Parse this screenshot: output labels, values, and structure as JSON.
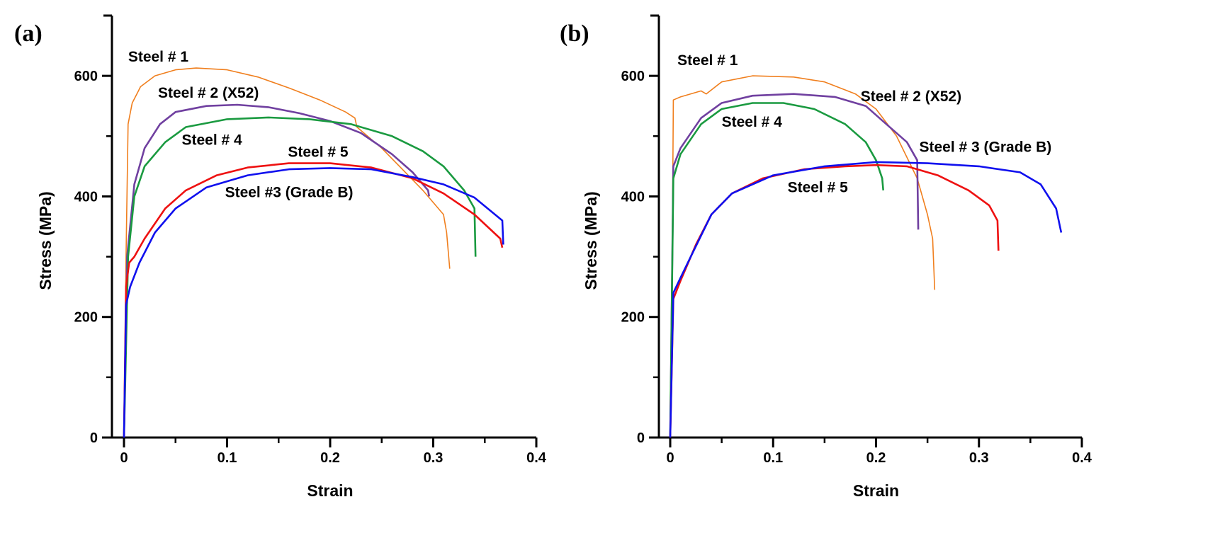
{
  "chart_data": [
    {
      "type": "line",
      "panel_label": "(a)",
      "xlabel": "Strain",
      "ylabel": "Stress (MPa)",
      "xlim": [
        0,
        0.4
      ],
      "ylim": [
        0,
        700
      ],
      "xticks": [
        "0",
        "0.1",
        "0.2",
        "0.3",
        "0.4"
      ],
      "yticks": [
        "0",
        "200",
        "400",
        "600"
      ],
      "grid": false,
      "series": [
        {
          "name": "Steel # 1",
          "color": "#f07f1e",
          "points": [
            [
              0,
              0
            ],
            [
              0.002,
              300
            ],
            [
              0.004,
              520
            ],
            [
              0.008,
              555
            ],
            [
              0.014,
              575
            ],
            [
              0.016,
              582
            ],
            [
              0.03,
              600
            ],
            [
              0.05,
              610
            ],
            [
              0.07,
              613
            ],
            [
              0.1,
              610
            ],
            [
              0.13,
              598
            ],
            [
              0.16,
              580
            ],
            [
              0.19,
              560
            ],
            [
              0.215,
              540
            ],
            [
              0.224,
              530
            ],
            [
              0.226,
              515
            ],
            [
              0.25,
              480
            ],
            [
              0.27,
              445
            ],
            [
              0.29,
              410
            ],
            [
              0.31,
              370
            ],
            [
              0.313,
              340
            ],
            [
              0.316,
              280
            ]
          ]
        },
        {
          "name": "Steel # 2 (X52)",
          "color": "#7040a0",
          "points": [
            [
              0,
              0
            ],
            [
              0.003,
              300
            ],
            [
              0.01,
              420
            ],
            [
              0.02,
              480
            ],
            [
              0.035,
              520
            ],
            [
              0.05,
              540
            ],
            [
              0.08,
              550
            ],
            [
              0.11,
              552
            ],
            [
              0.14,
              548
            ],
            [
              0.17,
              538
            ],
            [
              0.2,
              525
            ],
            [
              0.23,
              505
            ],
            [
              0.26,
              470
            ],
            [
              0.28,
              440
            ],
            [
              0.295,
              410
            ],
            [
              0.296,
              400
            ]
          ]
        },
        {
          "name": "Steel # 4",
          "color": "#1a9a40",
          "points": [
            [
              0,
              0
            ],
            [
              0.004,
              300
            ],
            [
              0.01,
              400
            ],
            [
              0.02,
              450
            ],
            [
              0.04,
              490
            ],
            [
              0.06,
              515
            ],
            [
              0.1,
              528
            ],
            [
              0.14,
              531
            ],
            [
              0.18,
              528
            ],
            [
              0.22,
              520
            ],
            [
              0.26,
              500
            ],
            [
              0.29,
              475
            ],
            [
              0.31,
              450
            ],
            [
              0.33,
              410
            ],
            [
              0.34,
              380
            ],
            [
              0.341,
              300
            ]
          ]
        },
        {
          "name": "Steel # 5",
          "color": "#ee1111",
          "points": [
            [
              0,
              0
            ],
            [
              0.002,
              250
            ],
            [
              0.005,
              290
            ],
            [
              0.01,
              300
            ],
            [
              0.02,
              330
            ],
            [
              0.04,
              380
            ],
            [
              0.06,
              410
            ],
            [
              0.09,
              435
            ],
            [
              0.12,
              448
            ],
            [
              0.16,
              455
            ],
            [
              0.2,
              455
            ],
            [
              0.24,
              448
            ],
            [
              0.28,
              430
            ],
            [
              0.31,
              405
            ],
            [
              0.34,
              370
            ],
            [
              0.365,
              330
            ],
            [
              0.367,
              315
            ]
          ]
        },
        {
          "name": "Steel #3 (Grade B)",
          "color": "#1010ee",
          "points": [
            [
              0,
              0
            ],
            [
              0.002,
              220
            ],
            [
              0.006,
              250
            ],
            [
              0.015,
              290
            ],
            [
              0.03,
              340
            ],
            [
              0.05,
              380
            ],
            [
              0.08,
              415
            ],
            [
              0.12,
              435
            ],
            [
              0.16,
              445
            ],
            [
              0.2,
              447
            ],
            [
              0.24,
              445
            ],
            [
              0.28,
              432
            ],
            [
              0.31,
              420
            ],
            [
              0.34,
              398
            ],
            [
              0.367,
              360
            ],
            [
              0.368,
              320
            ]
          ]
        }
      ],
      "annotations": [
        {
          "text": "Steel # 1",
          "x": 0.004,
          "y": 632
        },
        {
          "text": "Steel # 2 (X52)",
          "x": 0.033,
          "y": 572
        },
        {
          "text": "Steel # 4",
          "x": 0.056,
          "y": 494
        },
        {
          "text": "Steel # 5",
          "x": 0.159,
          "y": 474
        },
        {
          "text": "Steel #3 (Grade B)",
          "x": 0.098,
          "y": 407
        }
      ]
    },
    {
      "type": "line",
      "panel_label": "(b)",
      "xlabel": "Strain",
      "ylabel": "Stress (MPa)",
      "xlim": [
        0,
        0.4
      ],
      "ylim": [
        0,
        700
      ],
      "xticks": [
        "0",
        "0.1",
        "0.2",
        "0.3",
        "0.4"
      ],
      "yticks": [
        "0",
        "200",
        "400",
        "600"
      ],
      "grid": false,
      "series": [
        {
          "name": "Steel # 1",
          "color": "#f07f1e",
          "points": [
            [
              0,
              0
            ],
            [
              0.002,
              300
            ],
            [
              0.003,
              560
            ],
            [
              0.01,
              565
            ],
            [
              0.03,
              575
            ],
            [
              0.035,
              570
            ],
            [
              0.05,
              590
            ],
            [
              0.08,
              600
            ],
            [
              0.12,
              598
            ],
            [
              0.15,
              590
            ],
            [
              0.18,
              570
            ],
            [
              0.2,
              545
            ],
            [
              0.22,
              500
            ],
            [
              0.24,
              430
            ],
            [
              0.25,
              370
            ],
            [
              0.255,
              330
            ],
            [
              0.257,
              245
            ]
          ]
        },
        {
          "name": "Steel # 2 (X52)",
          "color": "#7040a0",
          "points": [
            [
              0,
              0
            ],
            [
              0.003,
              450
            ],
            [
              0.01,
              480
            ],
            [
              0.03,
              530
            ],
            [
              0.05,
              555
            ],
            [
              0.08,
              567
            ],
            [
              0.12,
              570
            ],
            [
              0.16,
              565
            ],
            [
              0.19,
              550
            ],
            [
              0.21,
              520
            ],
            [
              0.23,
              490
            ],
            [
              0.24,
              460
            ],
            [
              0.241,
              345
            ]
          ]
        },
        {
          "name": "Steel # 4",
          "color": "#1a9a40",
          "points": [
            [
              0,
              0
            ],
            [
              0.003,
              430
            ],
            [
              0.01,
              470
            ],
            [
              0.03,
              520
            ],
            [
              0.05,
              545
            ],
            [
              0.08,
              555
            ],
            [
              0.11,
              555
            ],
            [
              0.14,
              545
            ],
            [
              0.17,
              520
            ],
            [
              0.19,
              490
            ],
            [
              0.2,
              460
            ],
            [
              0.206,
              430
            ],
            [
              0.207,
              410
            ]
          ]
        },
        {
          "name": "Steel # 5",
          "color": "#ee1111",
          "points": [
            [
              0,
              0
            ],
            [
              0.003,
              230
            ],
            [
              0.01,
              260
            ],
            [
              0.015,
              280
            ],
            [
              0.025,
              320
            ],
            [
              0.04,
              370
            ],
            [
              0.06,
              405
            ],
            [
              0.09,
              430
            ],
            [
              0.13,
              445
            ],
            [
              0.17,
              450
            ],
            [
              0.2,
              452
            ],
            [
              0.23,
              450
            ],
            [
              0.26,
              435
            ],
            [
              0.29,
              410
            ],
            [
              0.31,
              385
            ],
            [
              0.318,
              360
            ],
            [
              0.319,
              310
            ]
          ]
        },
        {
          "name": "Steel # 3 (Grade B)",
          "color": "#1010ee",
          "points": [
            [
              0,
              0
            ],
            [
              0.003,
              240
            ],
            [
              0.01,
              265
            ],
            [
              0.02,
              300
            ],
            [
              0.04,
              370
            ],
            [
              0.06,
              405
            ],
            [
              0.1,
              435
            ],
            [
              0.15,
              450
            ],
            [
              0.2,
              457
            ],
            [
              0.25,
              455
            ],
            [
              0.3,
              450
            ],
            [
              0.34,
              440
            ],
            [
              0.36,
              420
            ],
            [
              0.375,
              380
            ],
            [
              0.38,
              340
            ]
          ]
        }
      ],
      "annotations": [
        {
          "text": "Steel # 1",
          "x": 0.007,
          "y": 626
        },
        {
          "text": "Steel # 2 (X52)",
          "x": 0.185,
          "y": 566
        },
        {
          "text": "Steel # 4",
          "x": 0.05,
          "y": 524
        },
        {
          "text": "Steel # 3 (Grade B)",
          "x": 0.242,
          "y": 482
        },
        {
          "text": "Steel # 5",
          "x": 0.114,
          "y": 415
        }
      ]
    }
  ]
}
